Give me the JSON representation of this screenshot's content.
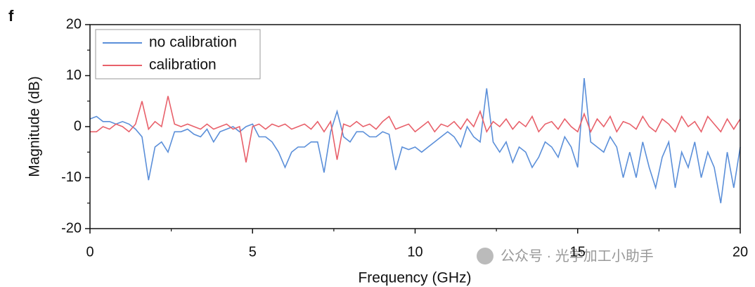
{
  "chart_data": {
    "type": "line",
    "panel_label": "f",
    "xlabel": "Frequency (GHz)",
    "ylabel": "Magnitude (dB)",
    "xlim": [
      0,
      20
    ],
    "ylim": [
      -20,
      20
    ],
    "xticks": [
      0,
      5,
      10,
      15,
      20
    ],
    "yticks": [
      -20,
      -10,
      0,
      10,
      20
    ],
    "xminor": [
      2.5,
      7.5,
      12.5,
      17.5
    ],
    "yminor": [
      -15,
      -5,
      5,
      15
    ],
    "legend": "upper left",
    "grid": false,
    "watermark": "公众号 · 光学加工小助手",
    "x": [
      0,
      0.2,
      0.4,
      0.6,
      0.8,
      1,
      1.2,
      1.4,
      1.6,
      1.8,
      2,
      2.2,
      2.4,
      2.6,
      2.8,
      3,
      3.2,
      3.4,
      3.6,
      3.8,
      4,
      4.2,
      4.4,
      4.6,
      4.8,
      5,
      5.2,
      5.4,
      5.6,
      5.8,
      6,
      6.2,
      6.4,
      6.6,
      6.8,
      7,
      7.2,
      7.4,
      7.6,
      7.8,
      8,
      8.2,
      8.4,
      8.6,
      8.8,
      9,
      9.2,
      9.4,
      9.6,
      9.8,
      10,
      10.2,
      10.4,
      10.6,
      10.8,
      11,
      11.2,
      11.4,
      11.6,
      11.8,
      12,
      12.2,
      12.4,
      12.6,
      12.8,
      13,
      13.2,
      13.4,
      13.6,
      13.8,
      14,
      14.2,
      14.4,
      14.6,
      14.8,
      15,
      15.2,
      15.4,
      15.6,
      15.8,
      16,
      16.2,
      16.4,
      16.6,
      16.8,
      17,
      17.2,
      17.4,
      17.6,
      17.8,
      18,
      18.2,
      18.4,
      18.6,
      18.8,
      19,
      19.2,
      19.4,
      19.6,
      19.8,
      20
    ],
    "series": [
      {
        "name": "no calibration",
        "color": "#5b8fd9",
        "values": [
          1.5,
          2,
          1,
          1,
          0.5,
          1,
          0.5,
          -0.5,
          -2,
          -10.5,
          -4,
          -3,
          -5,
          -1,
          -1,
          -0.5,
          -1.5,
          -2,
          -0.5,
          -3,
          -1,
          -0.5,
          0,
          -1,
          0,
          0.5,
          -2,
          -2,
          -3,
          -5,
          -8,
          -5,
          -4,
          -4,
          -3,
          -3,
          -9,
          -1,
          3,
          -2,
          -3,
          -1,
          -1,
          -2,
          -2,
          -1,
          -1.5,
          -8.5,
          -4,
          -4.5,
          -4,
          -5,
          -4,
          -3,
          -2,
          -1,
          -2,
          -4,
          0,
          -2,
          -3,
          7.5,
          -3,
          -5,
          -3,
          -7,
          -4,
          -5,
          -8,
          -6,
          -3,
          -4,
          -6,
          -2,
          -4,
          -8,
          9.5,
          -3,
          -4,
          -5,
          -2,
          -4,
          -10,
          -5,
          -10,
          -3,
          -8,
          -12,
          -6,
          -3,
          -12,
          -5,
          -8,
          -3,
          -10,
          -5,
          -8,
          -15,
          -5,
          -12,
          -4
        ]
      },
      {
        "name": "calibration",
        "color": "#e8606a",
        "values": [
          -1,
          -1,
          0,
          -0.5,
          0.5,
          0,
          -1,
          0.5,
          5,
          -0.5,
          1,
          0,
          6,
          0.5,
          0,
          0.5,
          0,
          -0.5,
          0.5,
          -0.5,
          0,
          0.5,
          -0.5,
          0,
          -7,
          0,
          0.5,
          -0.5,
          0.5,
          0,
          0.5,
          -0.5,
          0,
          0.5,
          -0.5,
          1,
          -1,
          1,
          -6.5,
          0.5,
          0,
          1,
          0,
          0.5,
          -0.5,
          1,
          2,
          -0.5,
          0,
          0.5,
          -1,
          0,
          1,
          -1,
          0.5,
          0,
          1,
          -0.5,
          1.5,
          0,
          3,
          -1,
          1,
          0,
          1.5,
          -0.5,
          1,
          0,
          2,
          -1,
          0.5,
          1,
          -0.5,
          1.5,
          0,
          -1,
          2.5,
          -1,
          1.5,
          0,
          2,
          -1,
          1,
          0.5,
          -0.5,
          2,
          0,
          -1,
          1.5,
          0.5,
          -1,
          2,
          0,
          1,
          -1,
          2,
          0.5,
          -1,
          1.5,
          -0.5,
          1.5
        ]
      }
    ]
  }
}
